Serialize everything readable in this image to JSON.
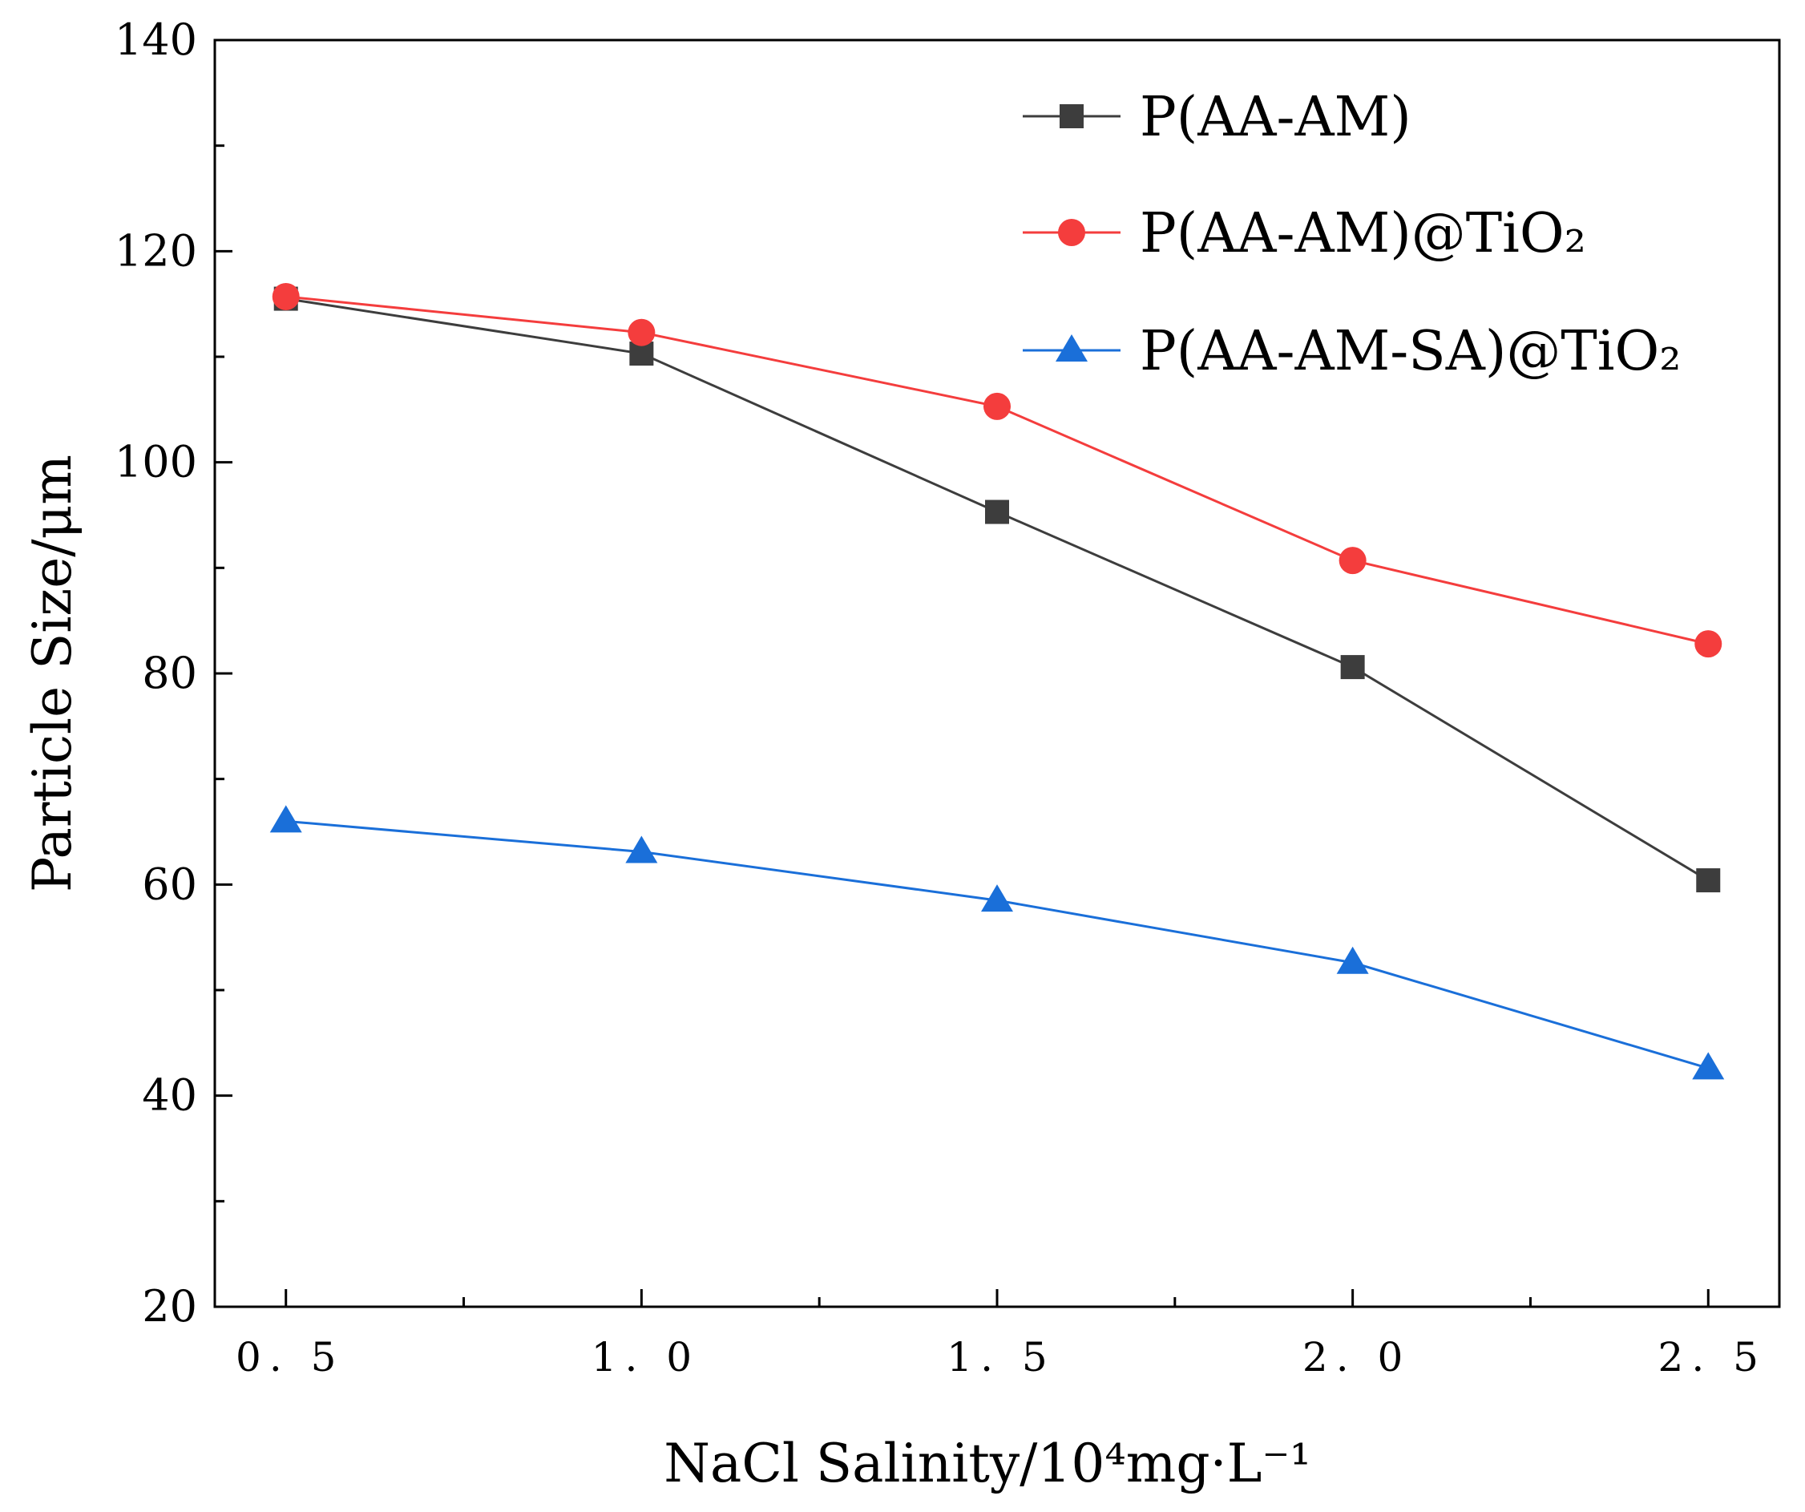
{
  "chart_data": {
    "type": "line",
    "title": "",
    "xlabel": "NaCl Salinity/10⁴mg·L⁻¹",
    "ylabel": "Particle Size/μm",
    "xlim": [
      0.4,
      2.6
    ],
    "ylim": [
      20,
      140
    ],
    "x": [
      0.5,
      1.0,
      1.5,
      2.0,
      2.5
    ],
    "x_tick_labels": [
      "0. 5",
      "1. 0",
      "1. 5",
      "2. 0",
      "2. 5"
    ],
    "y_ticks": [
      20,
      40,
      60,
      80,
      100,
      120,
      140
    ],
    "grid": false,
    "legend_position": "top-right",
    "series": [
      {
        "name": "P(AA-AM)",
        "marker": "square",
        "color": "#3d3d3d",
        "values": [
          115.5,
          110.3,
          95.3,
          80.6,
          60.4
        ]
      },
      {
        "name": "P(AA-AM)@TiO₂",
        "marker": "circle",
        "color": "#f43d3d",
        "values": [
          115.7,
          112.3,
          105.3,
          90.7,
          82.8
        ]
      },
      {
        "name": "P(AA-AM-SA)@TiO₂",
        "marker": "triangle",
        "color": "#1a6fd9",
        "values": [
          66.0,
          63.1,
          58.5,
          52.6,
          42.6
        ]
      }
    ]
  }
}
